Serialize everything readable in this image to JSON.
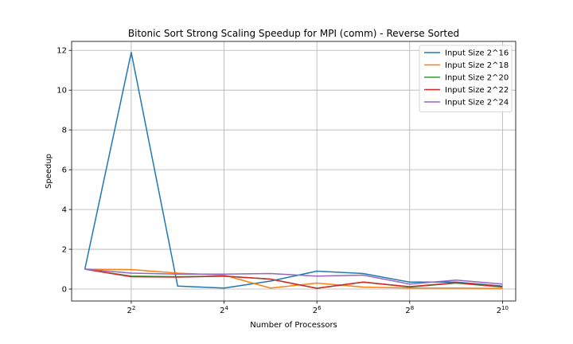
{
  "chart_data": {
    "type": "line",
    "title": "Bitonic Sort Strong Scaling Speedup for MPI (comm) - Reverse Sorted",
    "xlabel": "Number of Processors",
    "ylabel": "Speedup",
    "x_scale": "log2",
    "x": [
      2,
      4,
      8,
      16,
      32,
      64,
      128,
      256,
      512,
      1024
    ],
    "x_ticks": [
      4,
      16,
      64,
      256,
      1024
    ],
    "x_tick_exponents": [
      "2",
      "4",
      "6",
      "8",
      "10"
    ],
    "y_ticks": [
      0,
      2,
      4,
      6,
      8,
      10,
      12
    ],
    "ylim": [
      -0.6,
      12.45
    ],
    "grid": true,
    "legend_position": "top-right",
    "series": [
      {
        "name": "Input Size 2^16",
        "color": "#1f77b4",
        "values": [
          1.0,
          11.9,
          0.15,
          0.05,
          0.4,
          0.9,
          0.78,
          0.35,
          0.35,
          0.15
        ]
      },
      {
        "name": "Input Size 2^18",
        "color": "#ff7f0e",
        "values": [
          1.0,
          0.98,
          0.8,
          0.7,
          0.05,
          0.3,
          0.1,
          0.05,
          0.05,
          0.03
        ]
      },
      {
        "name": "Input Size 2^20",
        "color": "#2ca02c",
        "values": [
          1.0,
          0.65,
          0.62,
          0.65,
          0.5,
          0.04,
          0.35,
          0.1,
          0.3,
          0.1
        ]
      },
      {
        "name": "Input Size 2^22",
        "color": "#d62728",
        "values": [
          1.0,
          0.62,
          0.6,
          0.65,
          0.5,
          0.04,
          0.35,
          0.12,
          0.32,
          0.12
        ]
      },
      {
        "name": "Input Size 2^24",
        "color": "#9467bd",
        "values": [
          1.0,
          0.8,
          0.75,
          0.75,
          0.78,
          0.65,
          0.7,
          0.25,
          0.45,
          0.25
        ]
      }
    ]
  }
}
